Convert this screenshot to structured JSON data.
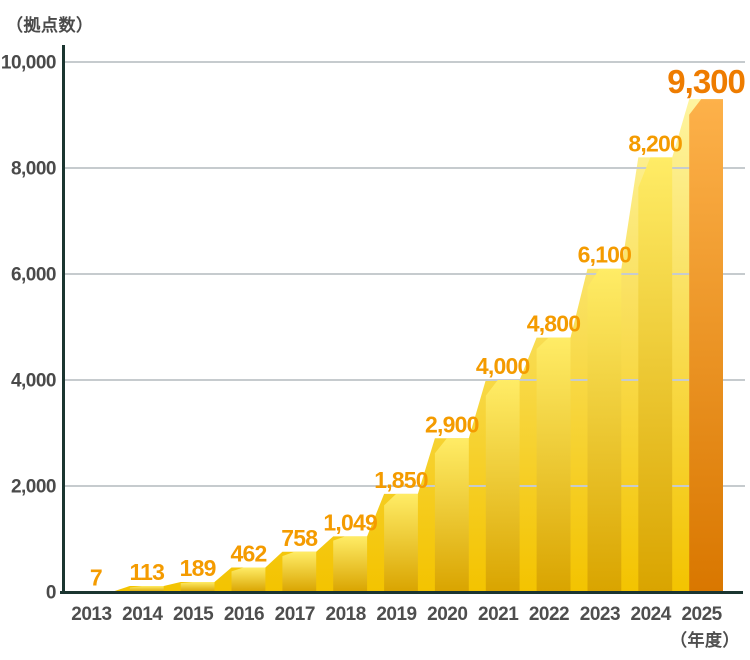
{
  "chart_data": {
    "type": "bar",
    "title": "",
    "unit_label": "（拠点数）",
    "xaxis_label": "（年度）",
    "categories": [
      "2013",
      "2014",
      "2015",
      "2016",
      "2017",
      "2018",
      "2019",
      "2020",
      "2021",
      "2022",
      "2023",
      "2024",
      "2025"
    ],
    "values": [
      7,
      113,
      189,
      462,
      758,
      1049,
      1850,
      2900,
      4000,
      4800,
      6100,
      8200,
      9300
    ],
    "value_labels": [
      "7",
      "113",
      "189",
      "462",
      "758",
      "1,049",
      "1,850",
      "2,900",
      "4,000",
      "4,800",
      "6,100",
      "8,200",
      "9,300"
    ],
    "highlight_index": 12,
    "ylim": [
      0,
      10000
    ],
    "yticks": [
      0,
      2000,
      4000,
      6000,
      8000,
      10000
    ],
    "ytick_labels": [
      "0",
      "2,000",
      "4,000",
      "6,000",
      "8,000",
      "10,000"
    ],
    "grid": true,
    "legend": "none",
    "colors": {
      "bar_gradient_top": "#FFEC66",
      "bar_gradient_bottom": "#D9A400",
      "back_gradient_top": "#FFF8AC",
      "back_gradient_bottom": "#F3C300",
      "highlight_gradient_top": "#FDB14A",
      "highlight_gradient_bottom": "#D97700",
      "value_label": "#F49B00",
      "highlight_value_label": "#EE7C00",
      "gridline": "#C6CBCE",
      "axis": "#1B3530",
      "ytick_text": "#4A4A4A",
      "year_text": "#4E4E4E"
    }
  }
}
